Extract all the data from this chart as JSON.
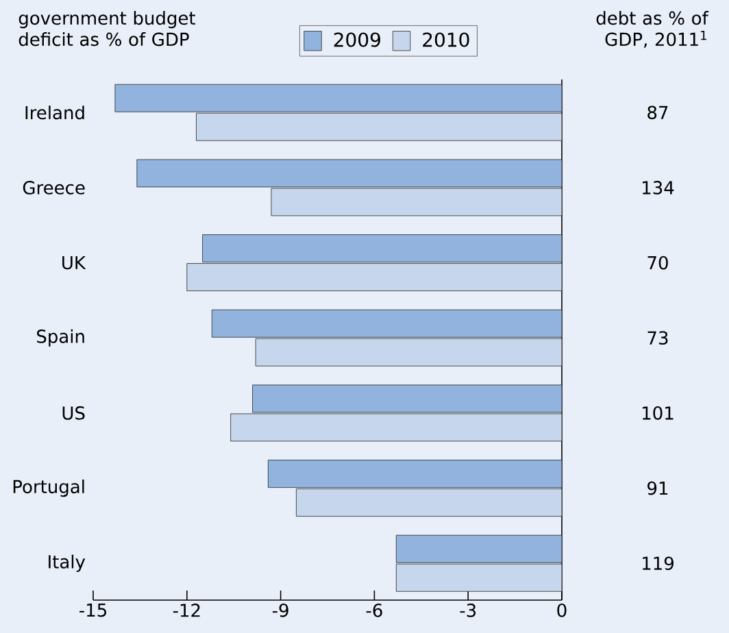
{
  "chart_data": {
    "type": "bar",
    "orientation": "horizontal",
    "xlabel": "government budget deficit as % of GDP",
    "y2label": "debt as % of GDP, 2011$^{1}$",
    "categories": [
      "Ireland",
      "Greece",
      "UK",
      "Spain",
      "US",
      "Portugal",
      "Italy"
    ],
    "series": [
      {
        "name": "2009",
        "color": "#92b3de",
        "values": [
          -14.3,
          -13.6,
          -11.5,
          -11.2,
          -9.9,
          -9.4,
          -5.3
        ]
      },
      {
        "name": "2010",
        "color": "#c6d6ec",
        "values": [
          -11.7,
          -9.3,
          -12.0,
          -9.8,
          -10.6,
          -8.5,
          -5.3
        ]
      }
    ],
    "xlim": [
      -15,
      0
    ],
    "xticks": [
      -15,
      -12,
      -9,
      -6,
      -3,
      0
    ],
    "legend": "top",
    "annotations": [
      "87",
      "134",
      "70",
      "73",
      "101",
      "91",
      "119"
    ]
  }
}
